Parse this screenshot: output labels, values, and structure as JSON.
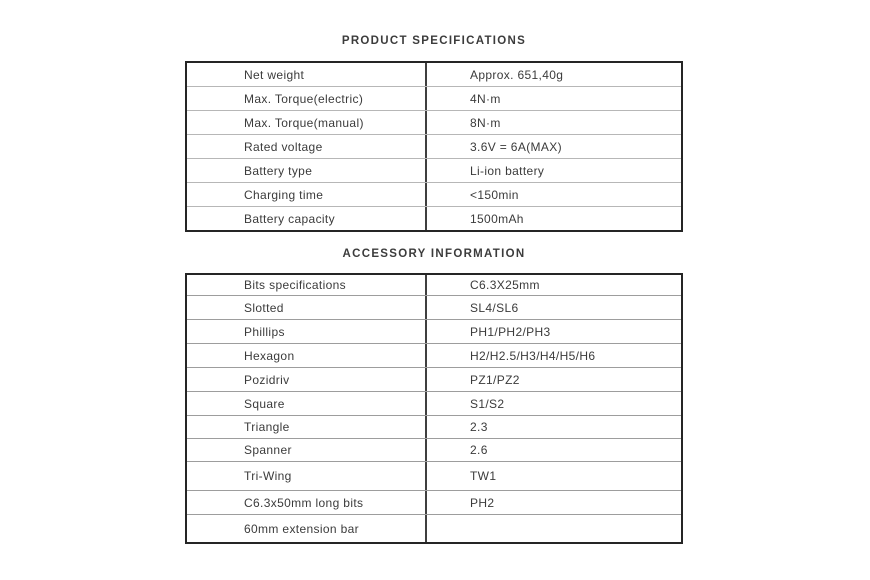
{
  "page": {
    "background": "#ffffff",
    "text_color": "#3b3b3b",
    "border_color": "#252525"
  },
  "sections": [
    {
      "title": "PRODUCT SPECIFICATIONS",
      "rows": [
        {
          "label": "Net weight",
          "value": "Approx. 651,40g"
        },
        {
          "label": "Max. Torque(electric)",
          "value": "4N·m"
        },
        {
          "label": "Max. Torque(manual)",
          "value": "8N·m"
        },
        {
          "label": "Rated voltage",
          "value": "3.6V = 6A(MAX)"
        },
        {
          "label": "Battery type",
          "value": "Li-ion battery"
        },
        {
          "label": "Charging time",
          "value": "<150min"
        },
        {
          "label": "Battery capacity",
          "value": "1500mAh"
        }
      ]
    },
    {
      "title": "ACCESSORY INFORMATION",
      "rows": [
        {
          "label": "Bits specifications",
          "value": "C6.3X25mm"
        },
        {
          "label": "Slotted",
          "value": "SL4/SL6"
        },
        {
          "label": "Phillips",
          "value": "PH1/PH2/PH3"
        },
        {
          "label": "Hexagon",
          "value": "H2/H2.5/H3/H4/H5/H6"
        },
        {
          "label": "Pozidriv",
          "value": "PZ1/PZ2"
        },
        {
          "label": "Square",
          "value": "S1/S2"
        },
        {
          "label": "Triangle",
          "value": "2.3"
        },
        {
          "label": "Spanner",
          "value": "2.6"
        },
        {
          "label": "Tri-Wing",
          "value": "TW1"
        },
        {
          "label": "C6.3x50mm long bits",
          "value": "PH2"
        },
        {
          "label": "60mm extension bar",
          "value": ""
        }
      ]
    }
  ]
}
